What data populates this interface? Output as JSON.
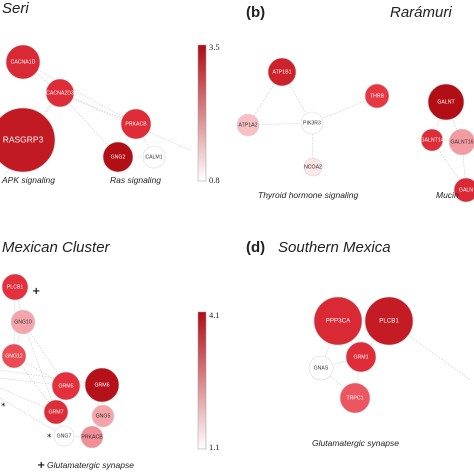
{
  "colors": {
    "low": "#ffffff",
    "high": "#b00c14"
  },
  "panels": [
    {
      "id": "a",
      "letter": "",
      "title": "Seri",
      "scale": {
        "min": 0.8,
        "max": 3.5,
        "max_label": "3.5",
        "min_label": "0.8"
      },
      "nodes": [
        {
          "id": "CACNA1D",
          "label": "CACNA1D",
          "value": 2.7
        },
        {
          "id": "CACNA2D3",
          "label": "CACNA2D3",
          "value": 2.6
        },
        {
          "id": "RASGRP3",
          "label": "RASGRP3",
          "value": 3.1
        },
        {
          "id": "PRKACB",
          "label": "PRKACB",
          "value": 2.6
        },
        {
          "id": "GNG2",
          "label": "GNG2",
          "value": 3.4
        },
        {
          "id": "CALM1",
          "label": "CALM1",
          "value": 0.8
        }
      ],
      "edges": [
        [
          "CACNA1D",
          "CACNA2D3"
        ],
        [
          "CACNA1D",
          "PRKACB"
        ],
        [
          "CACNA2D3",
          "PRKACB"
        ],
        [
          "CACNA2D3",
          "RASGRP3"
        ],
        [
          "CACNA2D3",
          "GNG2"
        ],
        [
          "PRKACB",
          "GNG2"
        ],
        [
          "PRKACB",
          "CALM1"
        ],
        [
          "GNG2",
          "CALM1"
        ]
      ],
      "pathways": [
        {
          "label": "APK signaling"
        },
        {
          "label": "Ras signaling"
        }
      ]
    },
    {
      "id": "b",
      "letter": "(b)",
      "title": "Rarámuri",
      "nodes": [
        {
          "id": "ATP1B1",
          "label": "ATP1B1",
          "value": 2.9
        },
        {
          "id": "ATP1A2",
          "label": "ATP1A2",
          "value": 1.3
        },
        {
          "id": "THRB",
          "label": "THRB",
          "value": 2.4
        },
        {
          "id": "PIK3R3",
          "label": "PIK3R3",
          "value": 0.8
        },
        {
          "id": "NCOA2",
          "label": "NCOA2",
          "value": 1.0
        },
        {
          "id": "GALNT1",
          "label": "GALNT",
          "value": 3.4
        },
        {
          "id": "GALNT14",
          "label": "GALNT14",
          "value": 2.6
        },
        {
          "id": "GALNT16",
          "label": "GALNT16",
          "value": 1.6
        },
        {
          "id": "GALNT2",
          "label": "GALN",
          "value": 2.7
        }
      ],
      "edges": [
        [
          "ATP1B1",
          "ATP1A2"
        ],
        [
          "ATP1B1",
          "PIK3R3"
        ],
        [
          "THRB",
          "PIK3R3"
        ],
        [
          "ATP1A2",
          "PIK3R3"
        ],
        [
          "PIK3R3",
          "NCOA2"
        ],
        [
          "GALNT1",
          "GALNT14"
        ],
        [
          "GALNT1",
          "GALNT16"
        ],
        [
          "GALNT14",
          "GALNT16"
        ],
        [
          "GALNT16",
          "GALNT2"
        ],
        [
          "GALNT14",
          "GALNT2"
        ]
      ],
      "pathways": [
        {
          "label": "Thyroid hormone signaling"
        },
        {
          "label": "Mucin"
        }
      ]
    },
    {
      "id": "c",
      "letter": "",
      "title": "Mexican Cluster",
      "scale": {
        "min": 1.1,
        "max": 4.1,
        "max_label": "4.1",
        "min_label": "1.1"
      },
      "nodes": [
        {
          "id": "PLCB1",
          "label": "PLCB1",
          "value": 3.0
        },
        {
          "id": "GNG10",
          "label": "GNG10",
          "value": 1.9
        },
        {
          "id": "GNG12",
          "label": "GNG12",
          "value": 2.7
        },
        {
          "id": "GRM5",
          "label": "GRM5",
          "value": 3.0
        },
        {
          "id": "GRM6",
          "label": "GRM6",
          "value": 3.9
        },
        {
          "id": "GRM7",
          "label": "GRM7",
          "value": 3.1
        },
        {
          "id": "GNG5",
          "label": "GNG5",
          "value": 1.9
        },
        {
          "id": "GNG7",
          "label": "GNG7",
          "value": 1.1
        },
        {
          "id": "PRKACB",
          "label": "PRKACB",
          "value": 2.1
        }
      ],
      "edges": [
        [
          "PLCB1",
          "GNG10"
        ],
        [
          "PLCB1",
          "GNG12"
        ],
        [
          "GNG10",
          "GNG12"
        ],
        [
          "GNG12",
          "GRM5"
        ],
        [
          "GNG10",
          "GRM5"
        ],
        [
          "GRM5",
          "GRM6"
        ],
        [
          "GRM5",
          "GRM7"
        ],
        [
          "GRM6",
          "GNG5"
        ],
        [
          "GRM7",
          "GNG7"
        ],
        [
          "GNG7",
          "PRKACB"
        ],
        [
          "GNG5",
          "PRKACB"
        ],
        [
          "GNG10",
          "GRM7"
        ],
        [
          "GNG12",
          "GRM7"
        ],
        [
          "GRM6",
          "PRKACB"
        ]
      ],
      "markers": [
        {
          "label": "+"
        },
        {
          "label": "*"
        },
        {
          "label": "*"
        }
      ],
      "pathways": [
        {
          "label": "Glutamatergic synapse"
        }
      ],
      "pathway_marker": "+"
    },
    {
      "id": "d",
      "letter": "(d)",
      "title": "Southern Mexica",
      "nodes": [
        {
          "id": "PPP3CA",
          "label": "PPP3CA",
          "value": 3.2
        },
        {
          "id": "PLCB1",
          "label": "PLCB1",
          "value": 3.6
        },
        {
          "id": "GNAS",
          "label": "GNAS",
          "value": 1.1
        },
        {
          "id": "GRM1",
          "label": "GRM1",
          "value": 3.1
        },
        {
          "id": "TRPC1",
          "label": "TRPC1",
          "value": 2.6
        }
      ],
      "edges": [
        [
          "PPP3CA",
          "PLCB1"
        ],
        [
          "PPP3CA",
          "GNAS"
        ],
        [
          "PPP3CA",
          "GRM1"
        ],
        [
          "PLCB1",
          "GRM1"
        ],
        [
          "GNAS",
          "GRM1"
        ],
        [
          "GRM1",
          "TRPC1"
        ],
        [
          "GNAS",
          "TRPC1"
        ]
      ],
      "pathways": [
        {
          "label": "Glutamatergic synapse"
        }
      ]
    }
  ]
}
